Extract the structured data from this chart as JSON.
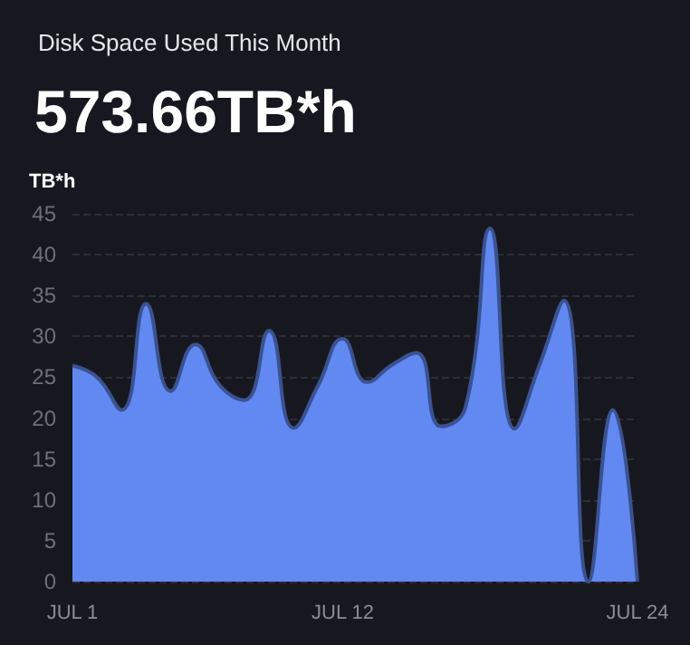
{
  "chart_data": {
    "type": "area",
    "title": "Disk Space Used This Month",
    "subtitle": "573.66TB*h",
    "ylabel": "TB*h",
    "categories": [
      "JUL 1",
      null,
      null,
      null,
      null,
      null,
      null,
      null,
      null,
      null,
      null,
      "JUL 12",
      null,
      null,
      null,
      null,
      null,
      null,
      null,
      null,
      null,
      null,
      null,
      "JUL 24"
    ],
    "series": [
      {
        "color": "#6289f2",
        "values": [
          26.4,
          25,
          21,
          34,
          23.3,
          29,
          24,
          22.2,
          30.7,
          18.8,
          24,
          29.7,
          24.4,
          26.5,
          28,
          19,
          21.3,
          43.2,
          18.7,
          26.4,
          34.4,
          0,
          21,
          0
        ]
      }
    ],
    "ylim": [
      0,
      45
    ],
    "yticks": [
      0,
      5,
      10,
      15,
      20,
      25,
      30,
      35,
      40,
      45
    ],
    "grid": "y",
    "marker": "none",
    "line_style": "solid"
  }
}
